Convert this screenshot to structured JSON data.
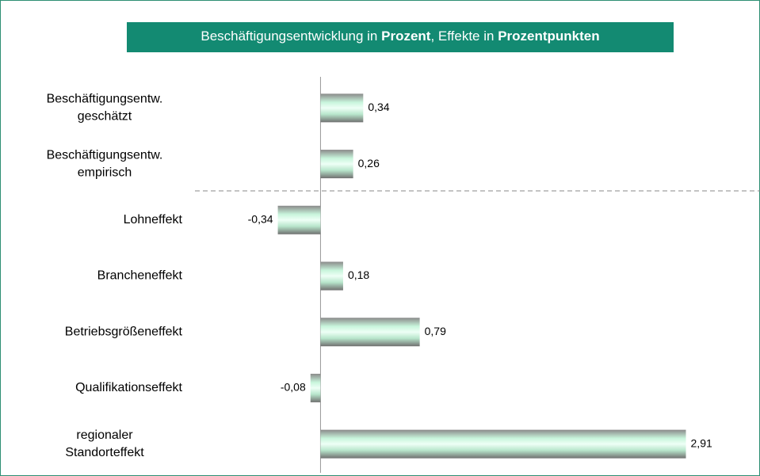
{
  "chart_data": {
    "type": "barh",
    "title": [
      {
        "text": "Beschäftigungsentwicklung in ",
        "bold": false
      },
      {
        "text": "Prozent",
        "bold": true
      },
      {
        "text": ", Effekte in ",
        "bold": false
      },
      {
        "text": "Prozentpunkten",
        "bold": true
      }
    ],
    "categories": [
      [
        "Beschäftigungsentw.",
        "geschätzt"
      ],
      [
        "Beschäftigungsentw.",
        "empirisch"
      ],
      [
        "Lohneffekt"
      ],
      [
        "Brancheneffekt"
      ],
      [
        "Betriebsgrößeneffekt"
      ],
      [
        "Qualifikationseffekt"
      ],
      [
        "regionaler",
        "Standorteffekt"
      ]
    ],
    "values": [
      0.34,
      0.26,
      -0.34,
      0.18,
      0.79,
      -0.08,
      2.91
    ],
    "value_labels": [
      "0,34",
      "0,26",
      "-0,34",
      "0,18",
      "0,79",
      "-0,08",
      "2,91"
    ],
    "xlim": [
      -1,
      3.5
    ],
    "color": "#c8f5dc"
  }
}
